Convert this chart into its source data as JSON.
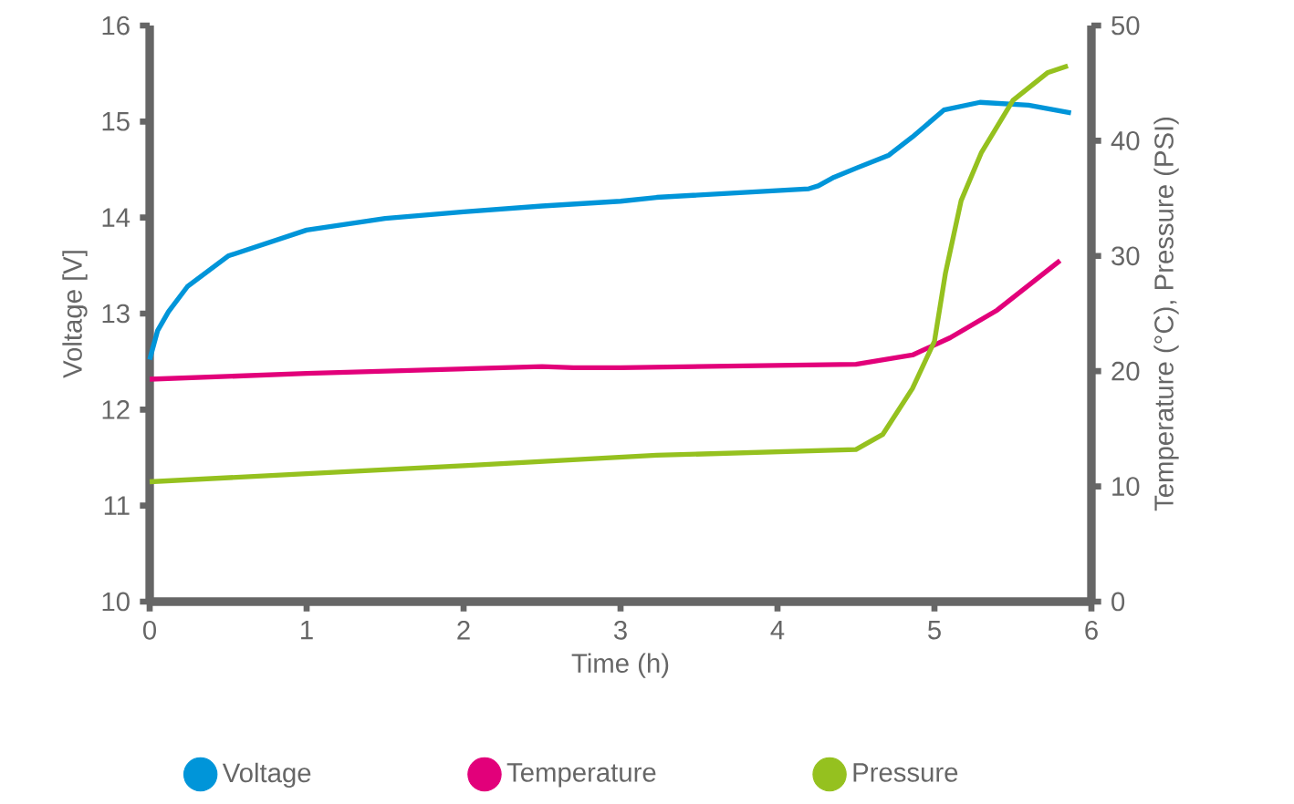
{
  "chart_data": {
    "type": "line",
    "xlabel": "Time (h)",
    "ylabel": "Voltage [V]",
    "y2label": "Temperature (°C), Pressure (PSI)",
    "xlim": [
      0,
      6
    ],
    "xticks": [
      0,
      1,
      2,
      3,
      4,
      5,
      6
    ],
    "ylim": [
      10,
      16
    ],
    "yticks": [
      10,
      11,
      12,
      13,
      14,
      15,
      16
    ],
    "y2lim": [
      0,
      50
    ],
    "y2ticks": [
      0,
      10,
      20,
      30,
      40,
      50
    ],
    "grid": false,
    "legend": "bottom",
    "series": [
      {
        "name": "Voltage",
        "color": "#0095d9",
        "x": [
          0,
          0.05,
          0.12,
          0.24,
          0.5,
          1,
          1.5,
          2,
          2.5,
          3,
          3.23,
          4.2,
          4.26,
          4.36,
          4.51,
          4.71,
          4.86,
          5.06,
          5.29,
          5.6,
          5.87
        ],
        "values": [
          12.52,
          12.82,
          13.02,
          13.28,
          13.6,
          13.87,
          13.99,
          14.06,
          14.12,
          14.17,
          14.21,
          14.3,
          14.33,
          14.42,
          14.52,
          14.65,
          14.84,
          15.12,
          15.2,
          15.17,
          15.09
        ]
      },
      {
        "name": "Temperature",
        "color": "#e2007a",
        "axis": "y2",
        "x": [
          0,
          1,
          2,
          2.5,
          2.7,
          3,
          4.5,
          4.86,
          5.1,
          5.4,
          5.8
        ],
        "values": [
          19.3,
          19.8,
          20.2,
          20.4,
          20.3,
          20.3,
          20.6,
          21.4,
          22.9,
          25.3,
          29.6
        ]
      },
      {
        "name": "Pressure",
        "color": "#95c11f",
        "axis": "y2",
        "x": [
          0,
          1,
          2,
          3.23,
          4.5,
          4.67,
          4.86,
          5.0,
          5.07,
          5.17,
          5.3,
          5.5,
          5.72,
          5.85
        ],
        "values": [
          10.4,
          11.1,
          11.8,
          12.7,
          13.2,
          14.5,
          18.5,
          22.6,
          28.5,
          34.8,
          39.0,
          43.5,
          45.9,
          46.5
        ]
      }
    ]
  }
}
